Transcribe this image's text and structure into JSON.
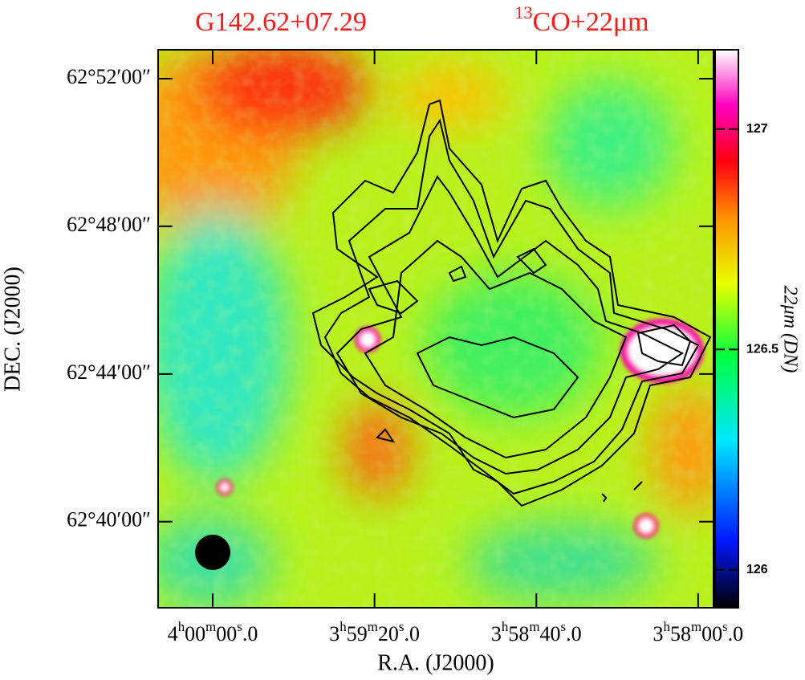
{
  "chart_data": {
    "type": "image",
    "title": "G142.62+07.29",
    "subtitle": "13CO+22μm",
    "xlabel": "R.A.  (J2000)",
    "ylabel": "DEC.  (J2000)",
    "xlim": [
      14413.5,
      14276.2
    ],
    "xticks": [
      {
        "value": 14400,
        "label": "4h00m00s.0"
      },
      {
        "value": 14360,
        "label": "3h59m20s.0"
      },
      {
        "value": 14320,
        "label": "3h58m40s.0"
      },
      {
        "value": 14280,
        "label": "3h58m00s.0"
      }
    ],
    "ylim": [
      62.6278,
      62.8797
    ],
    "yticks": [
      {
        "value": 62.86667,
        "label": "62°52′00″"
      },
      {
        "value": 62.8,
        "label": "62°48′00″"
      },
      {
        "value": 62.73333,
        "label": "62°44′00″"
      },
      {
        "value": 62.66667,
        "label": "62°40′00″"
      }
    ],
    "colorbar": {
      "label": "22μm  (DN)",
      "lim": [
        125.914,
        127.18
      ],
      "ticks": [
        126,
        126.5,
        127
      ]
    }
  }
}
